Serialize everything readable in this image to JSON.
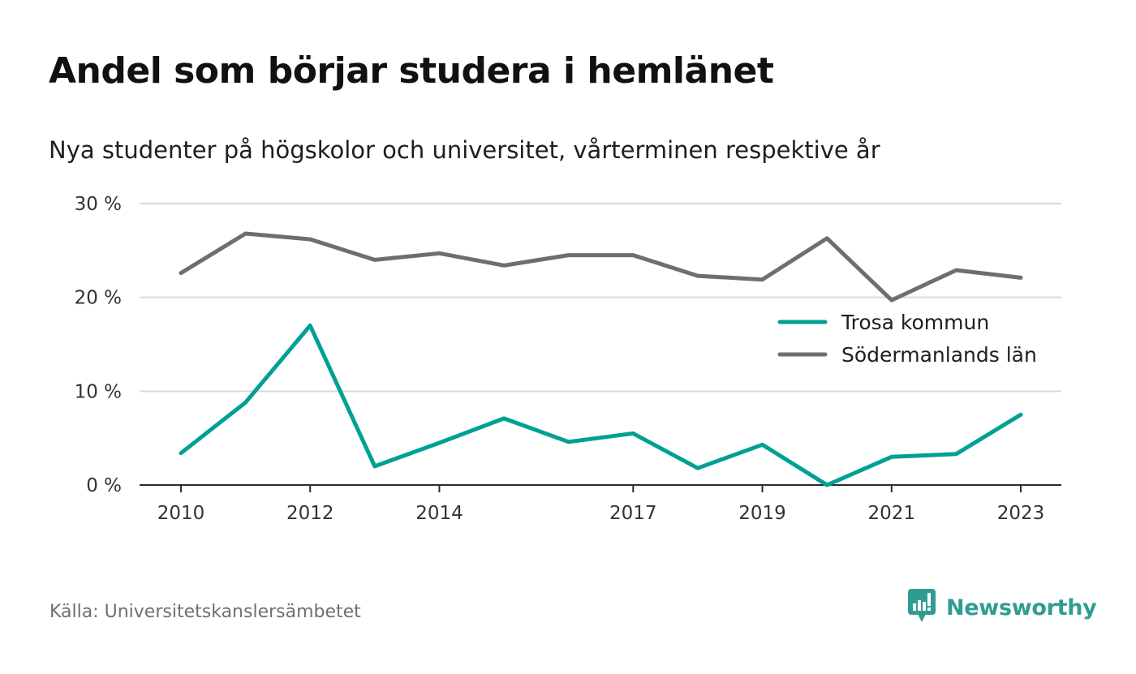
{
  "header": {
    "title": "Andel som börjar studera i hemlänet",
    "subtitle": "Nya studenter på högskolor och universitet, vårterminen respektive år"
  },
  "footer": {
    "source": "Källa: Universitetskanslersämbetet",
    "brand": "Newsworthy",
    "brand_icon": "bar-chart-speech-bubble-icon"
  },
  "colors": {
    "trosa": "#00a094",
    "sodermanland": "#6d6d74",
    "grid": "#d9d9d9",
    "axis": "#2b2b2b",
    "brand": "#2f9c93"
  },
  "chart_data": {
    "type": "line",
    "title": "Andel som börjar studera i hemlänet",
    "subtitle": "Nya studenter på högskolor och universitet, vårterminen respektive år",
    "x": [
      2010,
      2011,
      2012,
      2013,
      2014,
      2015,
      2016,
      2017,
      2018,
      2019,
      2020,
      2021,
      2022,
      2023
    ],
    "x_tick_labels": [
      "2010",
      "2012",
      "2014",
      "2017",
      "2019",
      "2021",
      "2023"
    ],
    "y_ticks": [
      0,
      10,
      20,
      30
    ],
    "y_tick_labels": [
      "0 %",
      "10 %",
      "20 %",
      "30 %"
    ],
    "ylim": [
      0,
      30
    ],
    "grid": true,
    "legend_position": "right",
    "series": [
      {
        "name": "Trosa kommun",
        "color": "#00a094",
        "values": [
          3.4,
          8.8,
          17.0,
          2.0,
          4.5,
          7.1,
          4.6,
          5.5,
          1.8,
          4.3,
          0.0,
          3.0,
          3.3,
          7.5
        ]
      },
      {
        "name": "Södermanlands län",
        "color": "#6d6d74",
        "values": [
          22.6,
          26.8,
          26.2,
          24.0,
          24.7,
          23.4,
          24.5,
          24.5,
          22.3,
          21.9,
          26.3,
          19.7,
          22.9,
          22.1
        ]
      }
    ]
  }
}
